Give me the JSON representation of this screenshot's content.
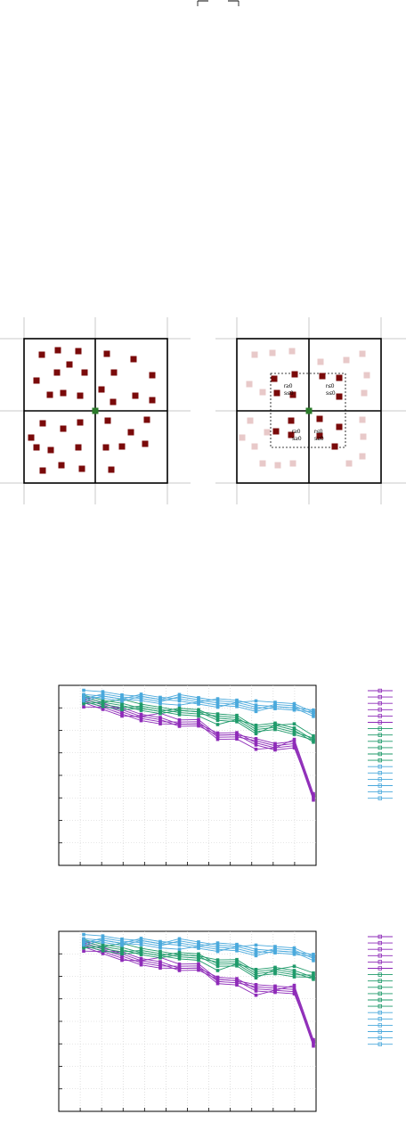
{
  "top_fragment": {
    "visible": "partial overbars of an equation cut off at top edge"
  },
  "diagram_left": {
    "dark_color": "#7a0a0a",
    "center_color": "#2a7a2a"
  },
  "diagram_right": {
    "dark_color": "#7a0a0a",
    "faded_color": "#e8c9c9",
    "center_color": "#2a7a2a",
    "labels": {
      "tl_r": "r≥0",
      "tl_s": "s≤0",
      "tr_r": "r≤0",
      "tr_s": "s≤0",
      "bl_r": "r≥0",
      "bl_s": "s≥0",
      "br_r": "r≤0",
      "br_s": "s≥0"
    }
  },
  "chart_data": [
    {
      "type": "line",
      "series": [
        {
          "color": "#8e2bb8",
          "values": [
            0.92,
            0.89,
            0.86,
            0.83,
            0.82,
            0.79,
            0.8,
            0.72,
            0.73,
            0.68,
            0.66,
            0.68,
            0.38
          ]
        },
        {
          "color": "#1f9a6a",
          "values": [
            0.93,
            0.91,
            0.9,
            0.88,
            0.87,
            0.86,
            0.86,
            0.82,
            0.82,
            0.76,
            0.78,
            0.76,
            0.7
          ]
        },
        {
          "color": "#4aa9dc",
          "values": [
            0.95,
            0.95,
            0.94,
            0.94,
            0.93,
            0.93,
            0.92,
            0.91,
            0.91,
            0.89,
            0.89,
            0.89,
            0.85
          ]
        }
      ]
    },
    {
      "type": "line",
      "series": [
        {
          "color": "#8e2bb8",
          "values": [
            0.93,
            0.9,
            0.87,
            0.84,
            0.83,
            0.8,
            0.81,
            0.73,
            0.73,
            0.68,
            0.68,
            0.68,
            0.38
          ]
        },
        {
          "color": "#1f9a6a",
          "values": [
            0.94,
            0.92,
            0.91,
            0.89,
            0.88,
            0.87,
            0.87,
            0.82,
            0.83,
            0.77,
            0.79,
            0.78,
            0.75
          ]
        },
        {
          "color": "#4aa9dc",
          "values": [
            0.96,
            0.96,
            0.95,
            0.95,
            0.94,
            0.94,
            0.93,
            0.92,
            0.92,
            0.9,
            0.9,
            0.9,
            0.86
          ]
        }
      ]
    }
  ]
}
